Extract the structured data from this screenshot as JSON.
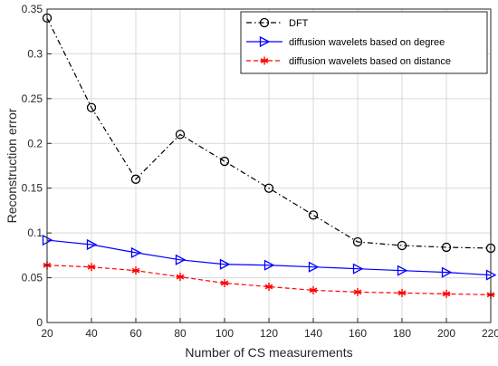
{
  "chart_data": {
    "type": "line",
    "xlabel": "Number of CS measurements",
    "ylabel": "Reconstruction error",
    "x": [
      20,
      40,
      60,
      80,
      100,
      120,
      140,
      160,
      180,
      200,
      220
    ],
    "xlim": [
      20,
      220
    ],
    "ylim": [
      0,
      0.35
    ],
    "xticks": [
      20,
      40,
      60,
      80,
      100,
      120,
      140,
      160,
      180,
      200,
      220
    ],
    "yticks": [
      0,
      0.05,
      0.1,
      0.15,
      0.2,
      0.25,
      0.3,
      0.35
    ],
    "xtick_labels": [
      "20",
      "40",
      "60",
      "80",
      "100",
      "120",
      "140",
      "160",
      "180",
      "200",
      "220"
    ],
    "ytick_labels": [
      "0",
      "0.05",
      "0.1",
      "0.15",
      "0.2",
      "0.25",
      "0.3",
      "0.35"
    ],
    "grid": true,
    "legend_position": "top-right",
    "series": [
      {
        "name": "DFT",
        "color": "#000000",
        "line_style": "dash-dot",
        "marker": "circle",
        "values": [
          0.34,
          0.24,
          0.16,
          0.21,
          0.18,
          0.15,
          0.12,
          0.09,
          0.086,
          0.084,
          0.083
        ]
      },
      {
        "name": "diffusion wavelets based on degree",
        "color": "#0000ff",
        "line_style": "solid",
        "marker": "triangle-right",
        "values": [
          0.092,
          0.087,
          0.078,
          0.07,
          0.065,
          0.064,
          0.062,
          0.06,
          0.058,
          0.056,
          0.053
        ]
      },
      {
        "name": "diffusion wavelets based on distance",
        "color": "#ff0000",
        "line_style": "dashed",
        "marker": "asterisk",
        "values": [
          0.064,
          0.062,
          0.058,
          0.051,
          0.044,
          0.04,
          0.036,
          0.034,
          0.033,
          0.032,
          0.031
        ]
      }
    ]
  }
}
